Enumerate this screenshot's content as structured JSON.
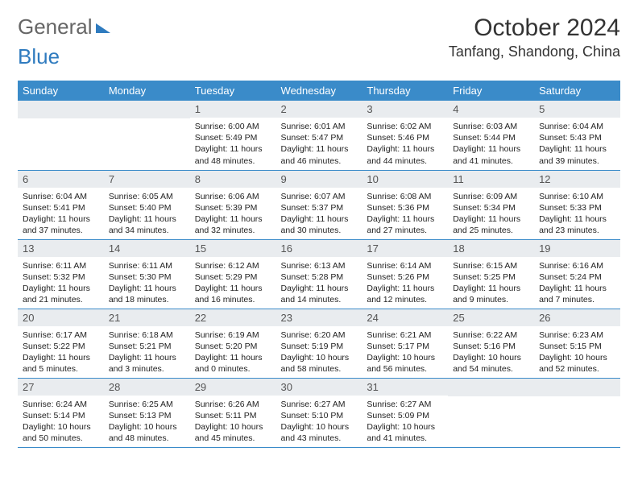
{
  "brand": {
    "part1": "General",
    "part2": "Blue"
  },
  "title": "October 2024",
  "location": "Tanfang, Shandong, China",
  "colors": {
    "header_bg": "#3a8bc9",
    "header_text": "#ffffff",
    "daynum_bg": "#e9ecef",
    "border": "#3a8bc9",
    "brand_gray": "#666666",
    "brand_blue": "#2f7bbf"
  },
  "weekdays": [
    "Sunday",
    "Monday",
    "Tuesday",
    "Wednesday",
    "Thursday",
    "Friday",
    "Saturday"
  ],
  "weeks": [
    [
      null,
      null,
      {
        "n": "1",
        "sr": "6:00 AM",
        "ss": "5:49 PM",
        "dl": "11 hours and 48 minutes."
      },
      {
        "n": "2",
        "sr": "6:01 AM",
        "ss": "5:47 PM",
        "dl": "11 hours and 46 minutes."
      },
      {
        "n": "3",
        "sr": "6:02 AM",
        "ss": "5:46 PM",
        "dl": "11 hours and 44 minutes."
      },
      {
        "n": "4",
        "sr": "6:03 AM",
        "ss": "5:44 PM",
        "dl": "11 hours and 41 minutes."
      },
      {
        "n": "5",
        "sr": "6:04 AM",
        "ss": "5:43 PM",
        "dl": "11 hours and 39 minutes."
      }
    ],
    [
      {
        "n": "6",
        "sr": "6:04 AM",
        "ss": "5:41 PM",
        "dl": "11 hours and 37 minutes."
      },
      {
        "n": "7",
        "sr": "6:05 AM",
        "ss": "5:40 PM",
        "dl": "11 hours and 34 minutes."
      },
      {
        "n": "8",
        "sr": "6:06 AM",
        "ss": "5:39 PM",
        "dl": "11 hours and 32 minutes."
      },
      {
        "n": "9",
        "sr": "6:07 AM",
        "ss": "5:37 PM",
        "dl": "11 hours and 30 minutes."
      },
      {
        "n": "10",
        "sr": "6:08 AM",
        "ss": "5:36 PM",
        "dl": "11 hours and 27 minutes."
      },
      {
        "n": "11",
        "sr": "6:09 AM",
        "ss": "5:34 PM",
        "dl": "11 hours and 25 minutes."
      },
      {
        "n": "12",
        "sr": "6:10 AM",
        "ss": "5:33 PM",
        "dl": "11 hours and 23 minutes."
      }
    ],
    [
      {
        "n": "13",
        "sr": "6:11 AM",
        "ss": "5:32 PM",
        "dl": "11 hours and 21 minutes."
      },
      {
        "n": "14",
        "sr": "6:11 AM",
        "ss": "5:30 PM",
        "dl": "11 hours and 18 minutes."
      },
      {
        "n": "15",
        "sr": "6:12 AM",
        "ss": "5:29 PM",
        "dl": "11 hours and 16 minutes."
      },
      {
        "n": "16",
        "sr": "6:13 AM",
        "ss": "5:28 PM",
        "dl": "11 hours and 14 minutes."
      },
      {
        "n": "17",
        "sr": "6:14 AM",
        "ss": "5:26 PM",
        "dl": "11 hours and 12 minutes."
      },
      {
        "n": "18",
        "sr": "6:15 AM",
        "ss": "5:25 PM",
        "dl": "11 hours and 9 minutes."
      },
      {
        "n": "19",
        "sr": "6:16 AM",
        "ss": "5:24 PM",
        "dl": "11 hours and 7 minutes."
      }
    ],
    [
      {
        "n": "20",
        "sr": "6:17 AM",
        "ss": "5:22 PM",
        "dl": "11 hours and 5 minutes."
      },
      {
        "n": "21",
        "sr": "6:18 AM",
        "ss": "5:21 PM",
        "dl": "11 hours and 3 minutes."
      },
      {
        "n": "22",
        "sr": "6:19 AM",
        "ss": "5:20 PM",
        "dl": "11 hours and 0 minutes."
      },
      {
        "n": "23",
        "sr": "6:20 AM",
        "ss": "5:19 PM",
        "dl": "10 hours and 58 minutes."
      },
      {
        "n": "24",
        "sr": "6:21 AM",
        "ss": "5:17 PM",
        "dl": "10 hours and 56 minutes."
      },
      {
        "n": "25",
        "sr": "6:22 AM",
        "ss": "5:16 PM",
        "dl": "10 hours and 54 minutes."
      },
      {
        "n": "26",
        "sr": "6:23 AM",
        "ss": "5:15 PM",
        "dl": "10 hours and 52 minutes."
      }
    ],
    [
      {
        "n": "27",
        "sr": "6:24 AM",
        "ss": "5:14 PM",
        "dl": "10 hours and 50 minutes."
      },
      {
        "n": "28",
        "sr": "6:25 AM",
        "ss": "5:13 PM",
        "dl": "10 hours and 48 minutes."
      },
      {
        "n": "29",
        "sr": "6:26 AM",
        "ss": "5:11 PM",
        "dl": "10 hours and 45 minutes."
      },
      {
        "n": "30",
        "sr": "6:27 AM",
        "ss": "5:10 PM",
        "dl": "10 hours and 43 minutes."
      },
      {
        "n": "31",
        "sr": "6:27 AM",
        "ss": "5:09 PM",
        "dl": "10 hours and 41 minutes."
      },
      null,
      null
    ]
  ],
  "labels": {
    "sunrise": "Sunrise:",
    "sunset": "Sunset:",
    "daylight": "Daylight:"
  }
}
